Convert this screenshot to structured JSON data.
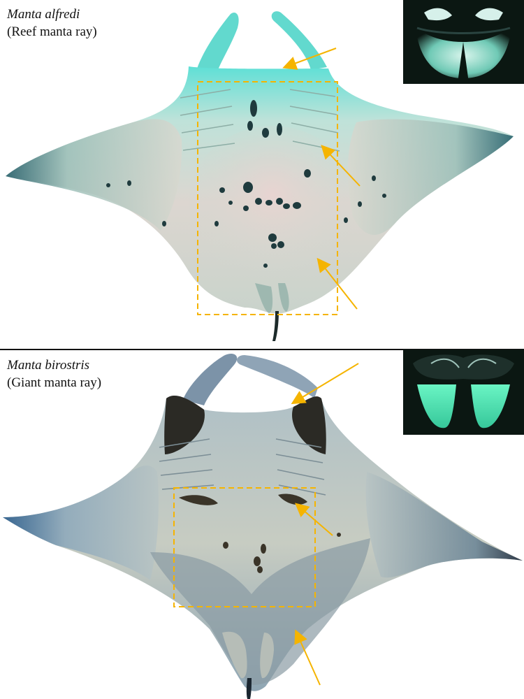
{
  "panels": [
    {
      "species": "Manta alfredi",
      "common_name": "(Reef manta ray)"
    },
    {
      "species": "Manta birostris",
      "common_name": "(Giant manta ray)"
    }
  ],
  "colors": {
    "arrow": "#F5B400",
    "box": "#F5B400",
    "reef_body_light": "#D9DDD5",
    "reef_glow": "#3ED9C9",
    "giant_dorsal_dark": "#2B2A25",
    "giant_body": "#B8C6CE",
    "giant_edge": "#2A4E78",
    "inset_bg": "#0B1712",
    "inset_glow": "#4AF0B8"
  }
}
